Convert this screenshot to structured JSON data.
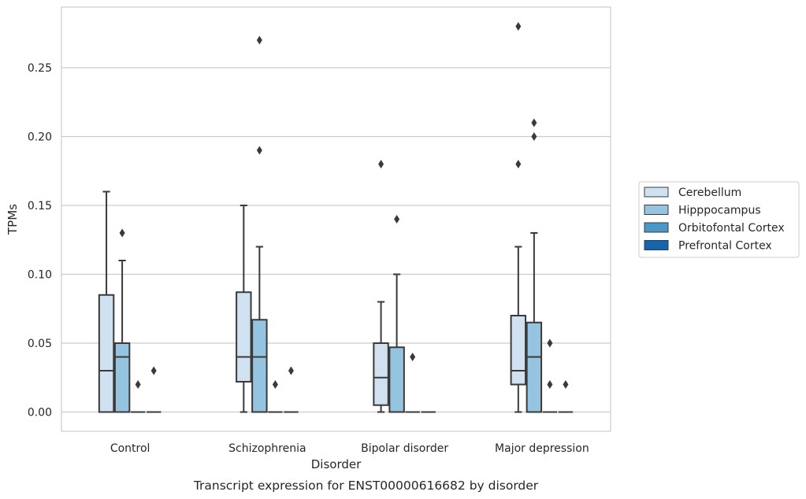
{
  "chart_data": {
    "type": "box",
    "xlabel": "Disorder",
    "ylabel": "TPMs",
    "caption": "Transcript expression for ENST00000616682 by disorder",
    "categories": [
      "Control",
      "Schizophrenia",
      "Bipolar disorder",
      "Major depression"
    ],
    "ylim": [
      -0.014,
      0.294
    ],
    "yticks": [
      0.0,
      0.05,
      0.1,
      0.15,
      0.2,
      0.25
    ],
    "ytick_labels": [
      "0.00",
      "0.05",
      "0.10",
      "0.15",
      "0.20",
      "0.25"
    ],
    "grid": "horizontal",
    "legend": {
      "placement": "right",
      "entries": [
        "Cerebellum",
        "Hipppocampus",
        "Orbitofontal Cortex",
        "Prefrontal Cortex"
      ]
    },
    "series": [
      {
        "name": "Cerebellum",
        "color": "#d0e1f2",
        "boxes": [
          {
            "whislo": 0.0,
            "q1": 0.0,
            "med": 0.03,
            "q3": 0.085,
            "whishi": 0.16,
            "fliers": []
          },
          {
            "whislo": 0.0,
            "q1": 0.022,
            "med": 0.04,
            "q3": 0.087,
            "whishi": 0.15,
            "fliers": []
          },
          {
            "whislo": 0.0,
            "q1": 0.005,
            "med": 0.025,
            "q3": 0.05,
            "whishi": 0.08,
            "fliers": [
              0.18
            ]
          },
          {
            "whislo": 0.0,
            "q1": 0.02,
            "med": 0.03,
            "q3": 0.07,
            "whishi": 0.12,
            "fliers": [
              0.18,
              0.28
            ]
          }
        ]
      },
      {
        "name": "Hipppocampus",
        "color": "#94c4df",
        "boxes": [
          {
            "whislo": 0.0,
            "q1": 0.0,
            "med": 0.04,
            "q3": 0.05,
            "whishi": 0.11,
            "fliers": [
              0.13
            ]
          },
          {
            "whislo": 0.0,
            "q1": 0.0,
            "med": 0.04,
            "q3": 0.067,
            "whishi": 0.12,
            "fliers": [
              0.19,
              0.27
            ]
          },
          {
            "whislo": 0.0,
            "q1": 0.0,
            "med": 0.0,
            "q3": 0.047,
            "whishi": 0.1,
            "fliers": [
              0.14
            ]
          },
          {
            "whislo": 0.0,
            "q1": 0.0,
            "med": 0.04,
            "q3": 0.065,
            "whishi": 0.13,
            "fliers": [
              0.2,
              0.21
            ]
          }
        ]
      },
      {
        "name": "Orbitofontal Cortex",
        "color": "#4a98c9",
        "boxes": [
          {
            "whislo": 0.0,
            "q1": 0.0,
            "med": 0.0,
            "q3": 0.0,
            "whishi": 0.0,
            "fliers": [
              0.02
            ]
          },
          {
            "whislo": 0.0,
            "q1": 0.0,
            "med": 0.0,
            "q3": 0.0,
            "whishi": 0.0,
            "fliers": [
              0.02
            ]
          },
          {
            "whislo": 0.0,
            "q1": 0.0,
            "med": 0.0,
            "q3": 0.0,
            "whishi": 0.0,
            "fliers": [
              0.04
            ]
          },
          {
            "whislo": 0.0,
            "q1": 0.0,
            "med": 0.0,
            "q3": 0.0,
            "whishi": 0.0,
            "fliers": [
              0.02,
              0.05
            ]
          }
        ]
      },
      {
        "name": "Prefrontal Cortex",
        "color": "#1764ab",
        "boxes": [
          {
            "whislo": 0.0,
            "q1": 0.0,
            "med": 0.0,
            "q3": 0.0,
            "whishi": 0.0,
            "fliers": [
              0.03
            ]
          },
          {
            "whislo": 0.0,
            "q1": 0.0,
            "med": 0.0,
            "q3": 0.0,
            "whishi": 0.0,
            "fliers": [
              0.03
            ]
          },
          {
            "whislo": 0.0,
            "q1": 0.0,
            "med": 0.0,
            "q3": 0.0,
            "whishi": 0.0,
            "fliers": []
          },
          {
            "whislo": 0.0,
            "q1": 0.0,
            "med": 0.0,
            "q3": 0.0,
            "whishi": 0.0,
            "fliers": [
              0.02
            ]
          }
        ]
      }
    ]
  }
}
